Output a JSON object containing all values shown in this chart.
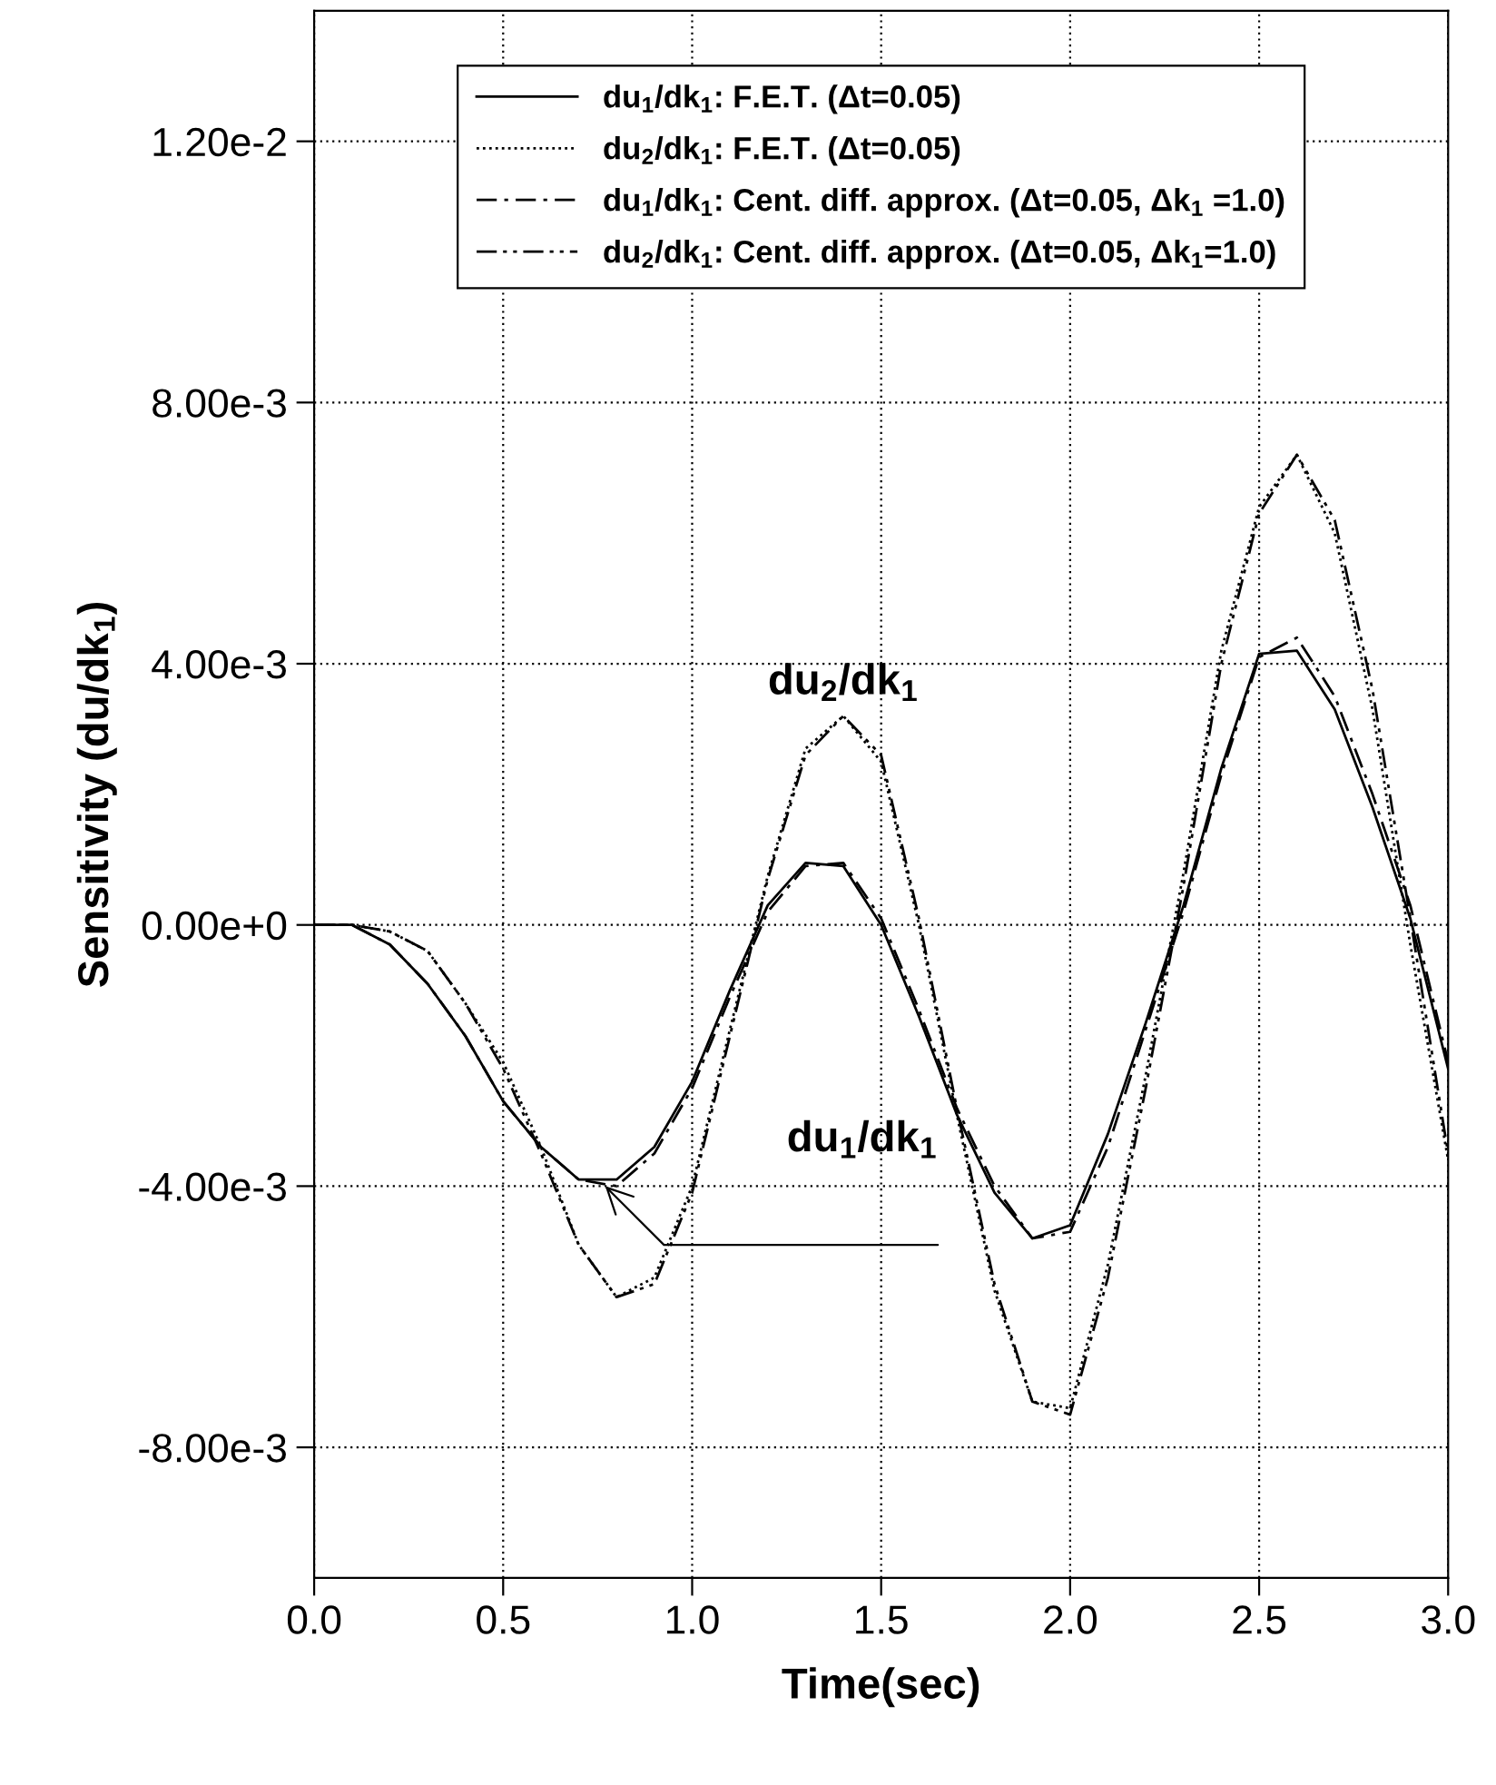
{
  "chart_data": {
    "type": "line",
    "xlabel": "Time(sec)",
    "ylabel": "Sensitivity (du/dk$_{1}$)",
    "x": [
      0,
      0.1,
      0.2,
      0.3,
      0.4,
      0.5,
      0.6,
      0.7,
      0.8,
      0.9,
      1.0,
      1.1,
      1.2,
      1.3,
      1.4,
      1.5,
      1.6,
      1.7,
      1.8,
      1.9,
      2.0,
      2.1,
      2.2,
      2.3,
      2.4,
      2.5,
      2.6,
      2.7,
      2.8,
      2.9,
      3.0
    ],
    "series": [
      {
        "name": "du$_{1}$/dk$_{1}$: F.E.T. (Δt=0.05)",
        "color": "#000000",
        "line_style": "solid",
        "values": [
          0,
          0,
          -0.0003,
          -0.0009,
          -0.0017,
          -0.0027,
          -0.0034,
          -0.0039,
          -0.0039,
          -0.0034,
          -0.0024,
          -0.001,
          0.0003,
          0.00095,
          0.0009,
          0.0,
          -0.0014,
          -0.0029,
          -0.0041,
          -0.0048,
          -0.0046,
          -0.0032,
          -0.0015,
          0.0003,
          0.0024,
          0.00415,
          0.0042,
          0.0033,
          0.0018,
          0.0001,
          -0.0022
        ]
      },
      {
        "name": "du$_{2}$/dk$_{1}$: F.E.T. (Δt=0.05)",
        "color": "#000000",
        "line_style": "dotted",
        "values": [
          0,
          0,
          -0.0001,
          -0.0004,
          -0.0012,
          -0.0021,
          -0.0034,
          -0.0049,
          -0.0057,
          -0.0054,
          -0.004,
          -0.0016,
          0.00075,
          0.0027,
          0.0032,
          0.0025,
          0.0,
          -0.0029,
          -0.0056,
          -0.0073,
          -0.0074,
          -0.0052,
          -0.0023,
          0.0008,
          0.0042,
          0.0064,
          0.0072,
          0.006,
          0.0033,
          -0.0003,
          -0.0036
        ]
      },
      {
        "name": "du$_{1}$/dk$_{1}$: Cent. diff. approx. (Δt=0.05, Δk$_{1}$ =1.0)",
        "color": "#000000",
        "line_style": "dashdot",
        "values": [
          0,
          0,
          -0.0003,
          -0.0009,
          -0.0017,
          -0.0027,
          -0.0034,
          -0.0039,
          -0.004,
          -0.0035,
          -0.0025,
          -0.0011,
          0.0002,
          0.0009,
          0.00095,
          0.0001,
          -0.0013,
          -0.0028,
          -0.004,
          -0.0048,
          -0.0047,
          -0.0034,
          -0.0016,
          0.0002,
          0.0023,
          0.0041,
          0.0044,
          0.0035,
          0.002,
          0.0003,
          -0.0021
        ]
      },
      {
        "name": "du$_{2}$/dk$_{1}$: Cent. diff. approx. (Δt=0.05, Δk$_{1}$=1.0)",
        "color": "#000000",
        "line_style": "dashdotdot",
        "values": [
          0,
          0,
          -0.0001,
          -0.0004,
          -0.0012,
          -0.0022,
          -0.0035,
          -0.0049,
          -0.0057,
          -0.0055,
          -0.0041,
          -0.0017,
          0.0007,
          0.0026,
          0.0032,
          0.0026,
          0.0001,
          -0.0028,
          -0.0055,
          -0.0073,
          -0.0075,
          -0.0054,
          -0.0025,
          0.0006,
          0.004,
          0.0063,
          0.0072,
          0.0062,
          0.0036,
          0.0001,
          -0.0035
        ]
      }
    ],
    "xlim": [
      0,
      3.0
    ],
    "xticks": [
      {
        "value": 0,
        "label": "0.0"
      },
      0.5,
      {
        "value": 1,
        "label": "1.0"
      },
      1.5,
      {
        "value": 2,
        "label": "2.0"
      },
      2.5,
      {
        "value": 3,
        "label": "3.0"
      }
    ],
    "ylim": [
      -0.01,
      0.014
    ],
    "yticks": [
      {
        "value": -0.008,
        "label": "-8.00e-3"
      },
      {
        "value": -0.004,
        "label": "-4.00e-3"
      },
      {
        "value": 0,
        "label": "0.00e+0"
      },
      {
        "value": 0.004,
        "label": "4.00e-3"
      },
      {
        "value": 0.008,
        "label": "8.00e-3"
      },
      {
        "value": 0.012,
        "label": "1.20e-2"
      }
    ],
    "grid": true,
    "legend": "top",
    "annotations": [
      {
        "text": "du$_{2}$/dk$_{1}$",
        "x": 1.4,
        "y": 0.0032
      },
      "du$_{1}$/dk$_{1}$"
    ]
  }
}
